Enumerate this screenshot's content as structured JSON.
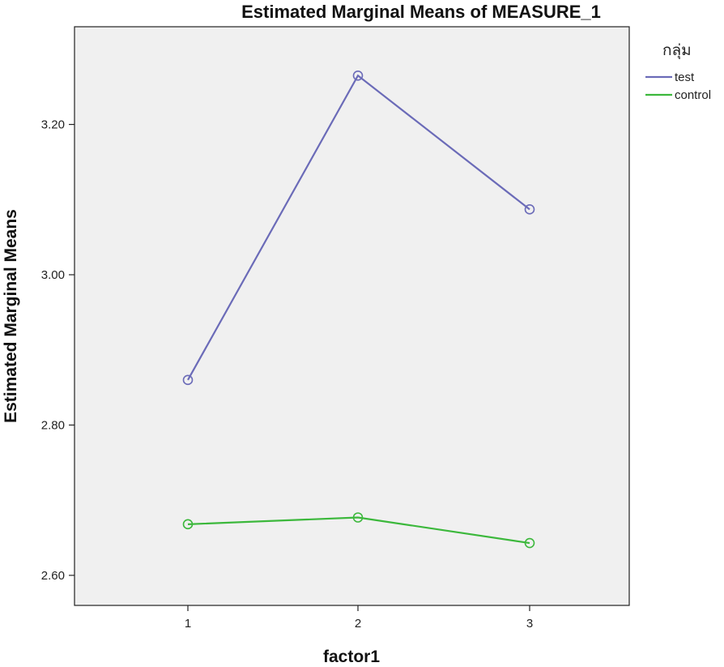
{
  "chart_data": {
    "type": "line",
    "title": "Estimated Marginal Means of MEASURE_1",
    "xlabel": "factor1",
    "ylabel": "Estimated Marginal Means",
    "categories": [
      "1",
      "2",
      "3"
    ],
    "y_ticks": [
      "2.60",
      "2.80",
      "3.00",
      "3.20"
    ],
    "ylim": [
      2.56,
      3.33
    ],
    "grid": false,
    "legend": {
      "title": "กลุ่ม",
      "placement": "right-top"
    },
    "series": [
      {
        "name": "test",
        "color": "#6b6bb8",
        "values": [
          2.86,
          3.265,
          3.087
        ]
      },
      {
        "name": "control",
        "color": "#3cb83c",
        "values": [
          2.668,
          2.677,
          2.643
        ]
      }
    ],
    "plot_background": "#f0f0f0",
    "marker": "open-circle"
  }
}
